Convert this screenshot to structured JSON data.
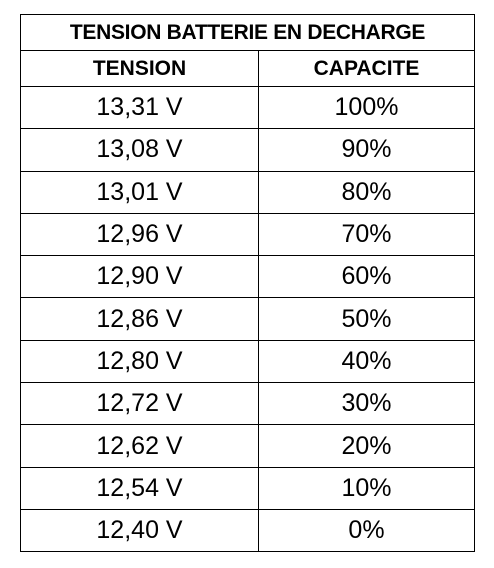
{
  "header": {
    "title": "TENSION BATTERIE EN DECHARGE"
  },
  "table": {
    "columns": [
      "TENSION",
      "CAPACITE"
    ],
    "rows": [
      [
        "13,31 V",
        "100%"
      ],
      [
        "13,08 V",
        "90%"
      ],
      [
        "13,01 V",
        "80%"
      ],
      [
        "12,96 V",
        "70%"
      ],
      [
        "12,90 V",
        "60%"
      ],
      [
        "12,86 V",
        "50%"
      ],
      [
        "12,80 V",
        "40%"
      ],
      [
        "12,72 V",
        "30%"
      ],
      [
        "12,62 V",
        "20%"
      ],
      [
        "12,54 V",
        "10%"
      ],
      [
        "12,40 V",
        "0%"
      ]
    ]
  }
}
